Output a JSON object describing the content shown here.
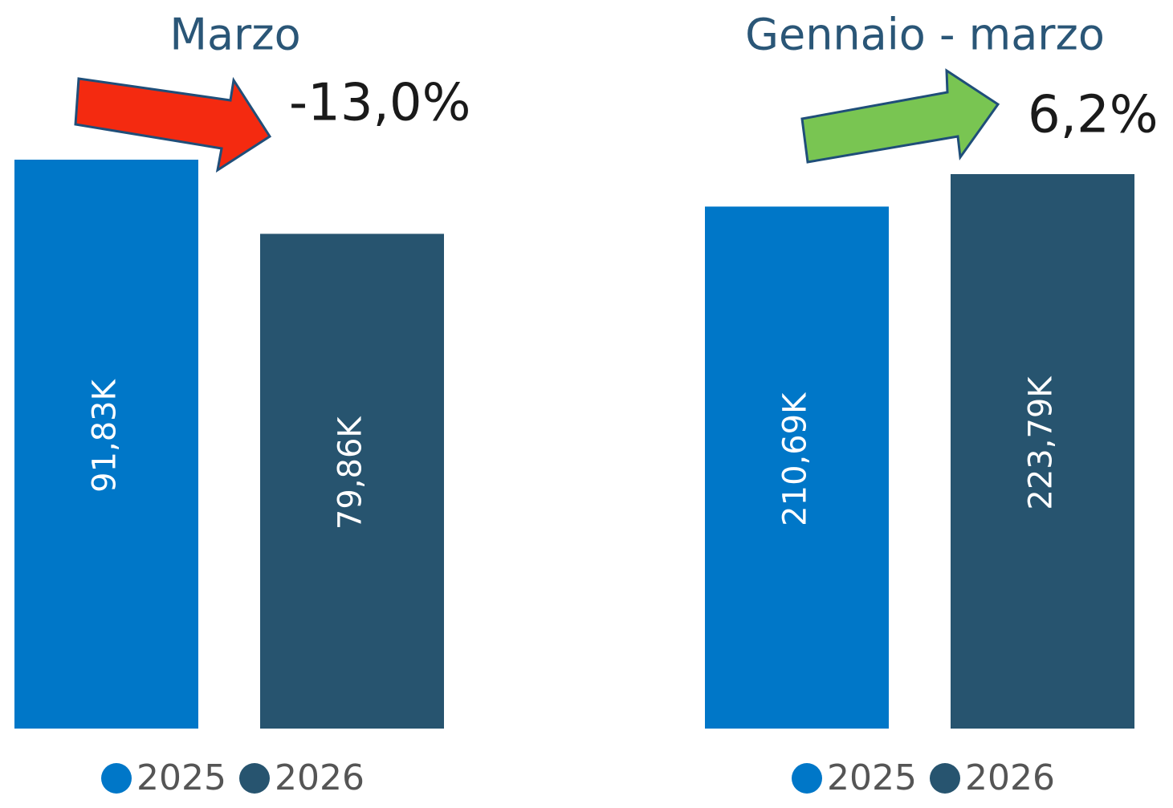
{
  "chart_data": [
    {
      "type": "bar",
      "title": "Marzo",
      "annotation": "-13,0%",
      "categories": [
        "2025",
        "2026"
      ],
      "values": [
        91.83,
        79.86
      ],
      "value_labels": [
        "91,83K",
        "79,86K"
      ],
      "colors": [
        "#0077c8",
        "#27546f"
      ]
    },
    {
      "type": "bar",
      "title": "Gennaio - marzo",
      "annotation": "6,2%",
      "categories": [
        "2025",
        "2026"
      ],
      "values": [
        210.69,
        223.79
      ],
      "value_labels": [
        "210,69K",
        "223,79K"
      ],
      "colors": [
        "#0077c8",
        "#27546f"
      ]
    }
  ]
}
